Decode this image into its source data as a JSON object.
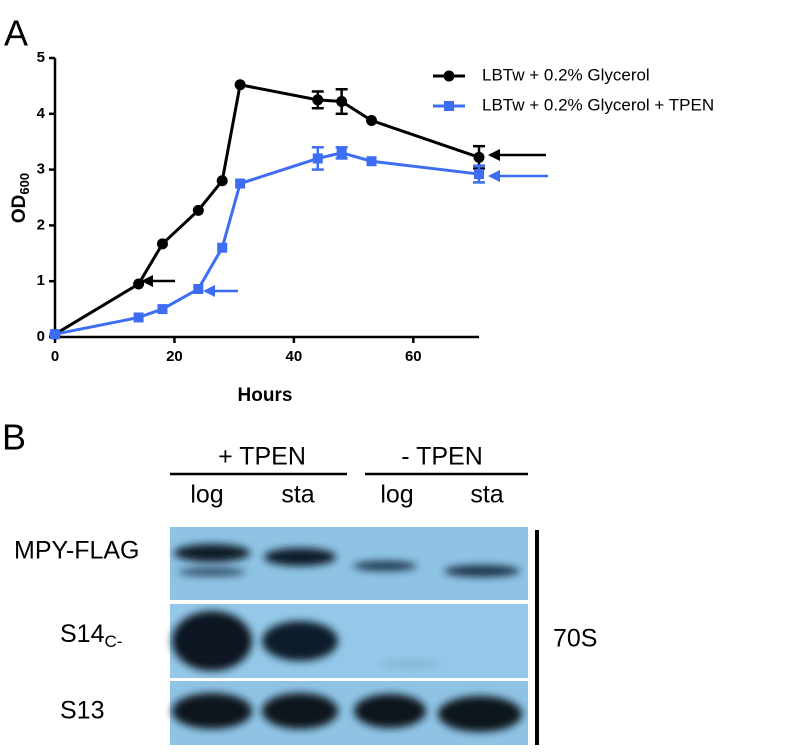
{
  "panel_labels": [
    "A",
    "B"
  ],
  "chart_data": {
    "type": "line",
    "x_label": "Hours",
    "y_label": "OD",
    "y_label_subscript": "600",
    "x": [
      0,
      14,
      18,
      24,
      28,
      31,
      44,
      48,
      53,
      71
    ],
    "xlim": [
      0,
      71
    ],
    "xticks": [
      0,
      20,
      40,
      60
    ],
    "ylim": [
      0,
      5
    ],
    "yticks": [
      0,
      1,
      2,
      3,
      4,
      5
    ],
    "legend": "upper right",
    "series": [
      {
        "name": "LBTw + 0.2% Glycerol",
        "color": "#000000",
        "marker": "circle",
        "values": [
          0.05,
          0.95,
          1.67,
          2.27,
          2.8,
          4.52,
          4.25,
          4.22,
          3.88,
          3.22
        ],
        "errors": [
          null,
          null,
          null,
          null,
          null,
          null,
          0.15,
          0.22,
          null,
          0.2
        ]
      },
      {
        "name": "LBTw + 0.2% Glycerol + TPEN",
        "color": "#3d6df2",
        "marker": "square",
        "values": [
          0.05,
          0.35,
          0.5,
          0.86,
          1.6,
          2.75,
          3.2,
          3.3,
          3.15,
          2.92
        ],
        "errors": [
          null,
          null,
          null,
          null,
          null,
          null,
          0.2,
          0.1,
          null,
          0.15
        ]
      }
    ]
  },
  "blot": {
    "groups": [
      {
        "label": "+ TPEN",
        "lanes": [
          "log",
          "sta"
        ]
      },
      {
        "label": "- TPEN",
        "lanes": [
          "log",
          "sta"
        ]
      }
    ],
    "rows": [
      {
        "label": "MPY-FLAG"
      },
      {
        "label": "S14",
        "subscript": "C-"
      },
      {
        "label": "S13"
      }
    ],
    "bracket_label": "70S"
  }
}
